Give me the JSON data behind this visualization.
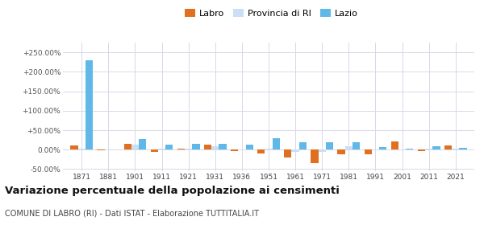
{
  "years": [
    1871,
    1881,
    1901,
    1911,
    1921,
    1931,
    1936,
    1951,
    1961,
    1971,
    1981,
    1991,
    2001,
    2011,
    2021
  ],
  "labro": [
    10.0,
    -2.0,
    15.0,
    -5.0,
    2.0,
    12.0,
    -3.0,
    -10.0,
    -20.0,
    -35.0,
    -12.0,
    -13.0,
    22.0,
    -3.0,
    10.0
  ],
  "provincia_ri": [
    3.0,
    -1.0,
    12.0,
    2.0,
    2.0,
    8.0,
    0.5,
    3.0,
    -5.0,
    -5.0,
    8.0,
    -2.0,
    0.5,
    3.0,
    3.0
  ],
  "lazio": [
    230.0,
    1.0,
    28.0,
    12.0,
    15.0,
    15.0,
    13.0,
    30.0,
    20.0,
    20.0,
    18.0,
    7.0,
    2.0,
    8.0,
    5.0
  ],
  "labro_color": "#e07020",
  "provincia_color": "#c8dff5",
  "lazio_color": "#60b8e8",
  "background_color": "#ffffff",
  "grid_color": "#d8d8e8",
  "ylim": [
    -55,
    275
  ],
  "yticks": [
    -50,
    0,
    50,
    100,
    150,
    200,
    250
  ],
  "ytick_labels": [
    "-50.00%",
    "0.00%",
    "+50.00%",
    "+100.00%",
    "+150.00%",
    "+200.00%",
    "+250.00%"
  ],
  "title": "Variazione percentuale della popolazione ai censimenti",
  "subtitle": "COMUNE DI LABRO (RI) - Dati ISTAT - Elaborazione TUTTITALIA.IT",
  "legend_labels": [
    "Labro",
    "Provincia di RI",
    "Lazio"
  ],
  "bar_width": 0.28
}
